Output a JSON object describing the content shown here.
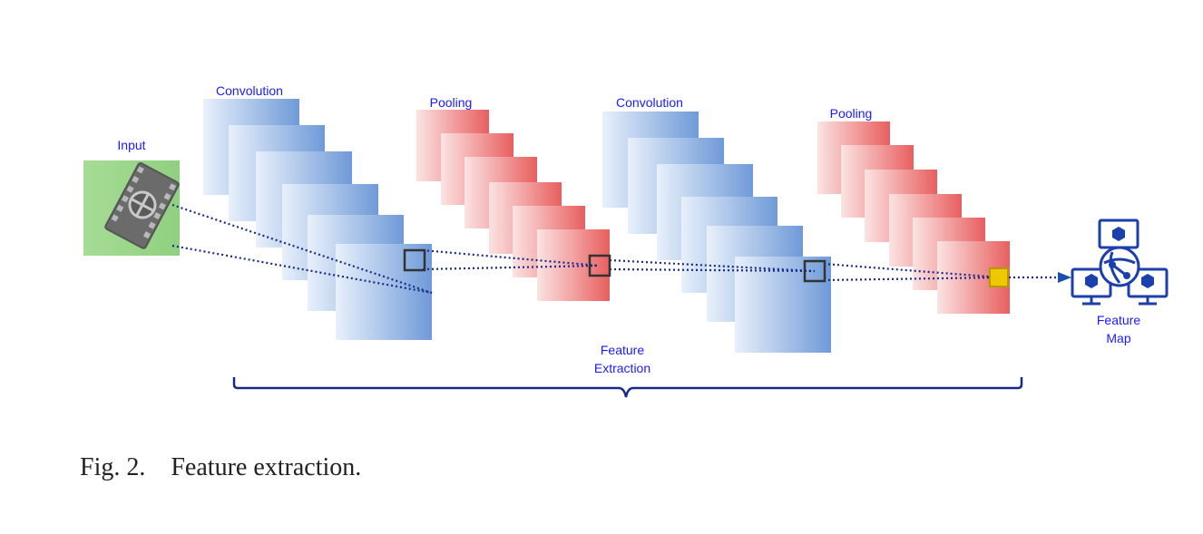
{
  "labels": {
    "input": "Input",
    "conv1": "Convolution",
    "pool1": "Pooling",
    "conv2": "Convolution",
    "pool2": "Pooling",
    "feature_extraction_line1": "Feature",
    "feature_extraction_line2": "Extraction",
    "feature_map_line1": "Feature",
    "feature_map_line2": "Map"
  },
  "caption": {
    "number": "Fig. 2.",
    "text": "Feature extraction."
  },
  "colors": {
    "label_text": "#1a1aff",
    "convolution_layer": "#6f9ad8",
    "pooling_layer": "#e85f5f",
    "input_box": "#8fd07f",
    "dotted_lines": "#1a2a8c",
    "brace": "#1a2a8c",
    "highlight": "#f0c800",
    "icon_blue": "#1c3fae"
  },
  "icons": {
    "input": "film-reel-icon",
    "output": "network-computers-icon"
  }
}
